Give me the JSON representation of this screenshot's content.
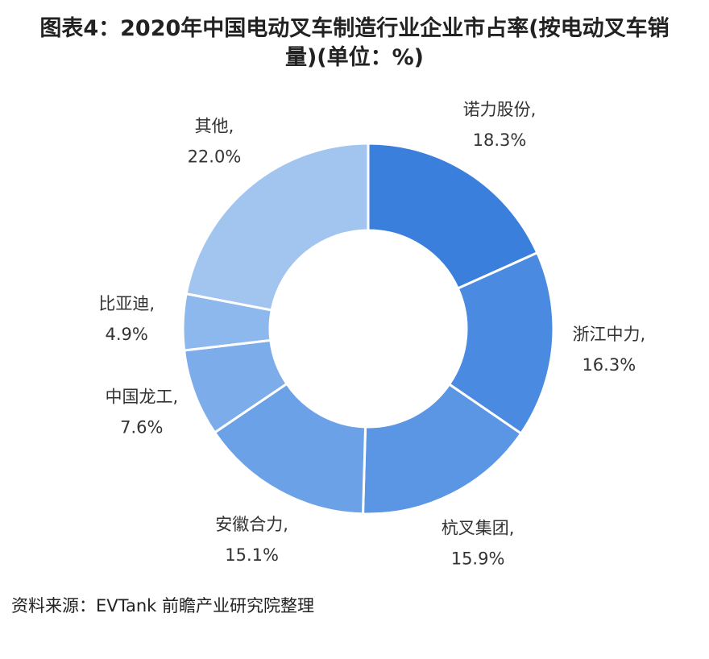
{
  "chart_data": {
    "type": "donut",
    "title": "图表4：2020年中国电动叉车制造行业企业市占率(按电动叉车销量)(单位：%)",
    "categories": [
      "诺力股份,",
      "浙江中力,",
      "杭叉集团,",
      "安徽合力,",
      "中国龙工,",
      "比亚迪,",
      "其他,"
    ],
    "values": [
      18.3,
      16.3,
      15.9,
      15.1,
      7.6,
      4.9,
      22.0
    ],
    "value_labels": [
      "18.3%",
      "16.3%",
      "15.9%",
      "15.1%",
      "7.6%",
      "4.9%",
      "22.0%"
    ],
    "colors": [
      "#3a7fdc",
      "#4a8ae0",
      "#5a96e3",
      "#6aa1e7",
      "#7cadea",
      "#8db8ed",
      "#a2c5f0"
    ],
    "source": "资料来源：EVTank 前瞻产业研究院整理"
  }
}
